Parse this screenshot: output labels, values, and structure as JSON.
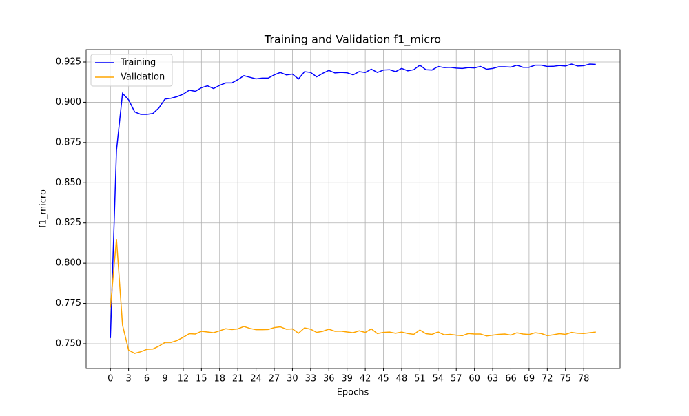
{
  "chart_data": {
    "type": "line",
    "title": "Training and Validation f1_micro",
    "x_label": "Epochs",
    "y_label": "f1_micro",
    "x": [
      0,
      1,
      2,
      3,
      4,
      5,
      6,
      7,
      8,
      9,
      10,
      11,
      12,
      13,
      14,
      15,
      16,
      17,
      18,
      19,
      20,
      21,
      22,
      23,
      24,
      25,
      26,
      27,
      28,
      29,
      30,
      31,
      32,
      33,
      34,
      35,
      36,
      37,
      38,
      39,
      40,
      41,
      42,
      43,
      44,
      45,
      46,
      47,
      48,
      49,
      50,
      51,
      52,
      53,
      54,
      55,
      56,
      57,
      58,
      59,
      60,
      61,
      62,
      63,
      64,
      65,
      66,
      67,
      68,
      69,
      70,
      71,
      72,
      73,
      74,
      75,
      76,
      77,
      78,
      79,
      80
    ],
    "series": [
      {
        "name": "Training",
        "color": "#0000ff",
        "values": [
          0.7535,
          0.87,
          0.9055,
          0.9015,
          0.894,
          0.8925,
          0.8925,
          0.893,
          0.8965,
          0.902,
          0.9025,
          0.9035,
          0.905,
          0.9075,
          0.9068,
          0.909,
          0.9102,
          0.9085,
          0.9105,
          0.912,
          0.912,
          0.914,
          0.9165,
          0.9155,
          0.9145,
          0.915,
          0.915,
          0.917,
          0.9185,
          0.917,
          0.9175,
          0.9145,
          0.919,
          0.9185,
          0.9158,
          0.918,
          0.9198,
          0.9182,
          0.9185,
          0.9183,
          0.917,
          0.919,
          0.9185,
          0.9205,
          0.9185,
          0.92,
          0.9202,
          0.919,
          0.921,
          0.9195,
          0.9202,
          0.923,
          0.9202,
          0.92,
          0.9222,
          0.9215,
          0.9217,
          0.9212,
          0.921,
          0.9215,
          0.9213,
          0.9222,
          0.9205,
          0.921,
          0.922,
          0.922,
          0.9218,
          0.923,
          0.9217,
          0.9217,
          0.923,
          0.923,
          0.9222,
          0.9223,
          0.9228,
          0.9225,
          0.9237,
          0.9225,
          0.9227,
          0.9237,
          0.9235
        ]
      },
      {
        "name": "Validation",
        "color": "#ffa500",
        "values": [
          0.7725,
          0.815,
          0.7615,
          0.746,
          0.744,
          0.745,
          0.7465,
          0.7467,
          0.7485,
          0.7508,
          0.7508,
          0.752,
          0.754,
          0.7562,
          0.756,
          0.7577,
          0.7573,
          0.7568,
          0.758,
          0.7593,
          0.7588,
          0.7592,
          0.7607,
          0.7595,
          0.7587,
          0.7587,
          0.7588,
          0.76,
          0.7605,
          0.759,
          0.7592,
          0.7565,
          0.7598,
          0.759,
          0.757,
          0.7577,
          0.759,
          0.7577,
          0.7578,
          0.7573,
          0.7568,
          0.758,
          0.757,
          0.7592,
          0.7563,
          0.757,
          0.7572,
          0.7565,
          0.7572,
          0.7563,
          0.7558,
          0.7585,
          0.7562,
          0.7558,
          0.7573,
          0.7555,
          0.7558,
          0.7553,
          0.755,
          0.7563,
          0.756,
          0.756,
          0.7548,
          0.7553,
          0.7558,
          0.756,
          0.7553,
          0.7568,
          0.756,
          0.7557,
          0.7568,
          0.7563,
          0.755,
          0.7555,
          0.7562,
          0.7558,
          0.757,
          0.7565,
          0.7563,
          0.7568,
          0.7572
        ]
      }
    ],
    "xlim": [
      -4,
      84
    ],
    "xticks": [
      0,
      3,
      6,
      9,
      12,
      15,
      18,
      21,
      24,
      27,
      30,
      33,
      36,
      39,
      42,
      45,
      48,
      51,
      54,
      57,
      60,
      63,
      66,
      69,
      72,
      75,
      78
    ],
    "ylim": [
      0.7346,
      0.9327
    ],
    "yticks": [
      {
        "value": 0.75,
        "label": "0.750"
      },
      0.775,
      {
        "value": 0.8,
        "label": "0.800"
      },
      0.825,
      {
        "value": 0.85,
        "label": "0.850"
      },
      0.875,
      {
        "value": 0.9,
        "label": "0.900"
      },
      0.925
    ],
    "grid": true,
    "legend": "upper left"
  }
}
